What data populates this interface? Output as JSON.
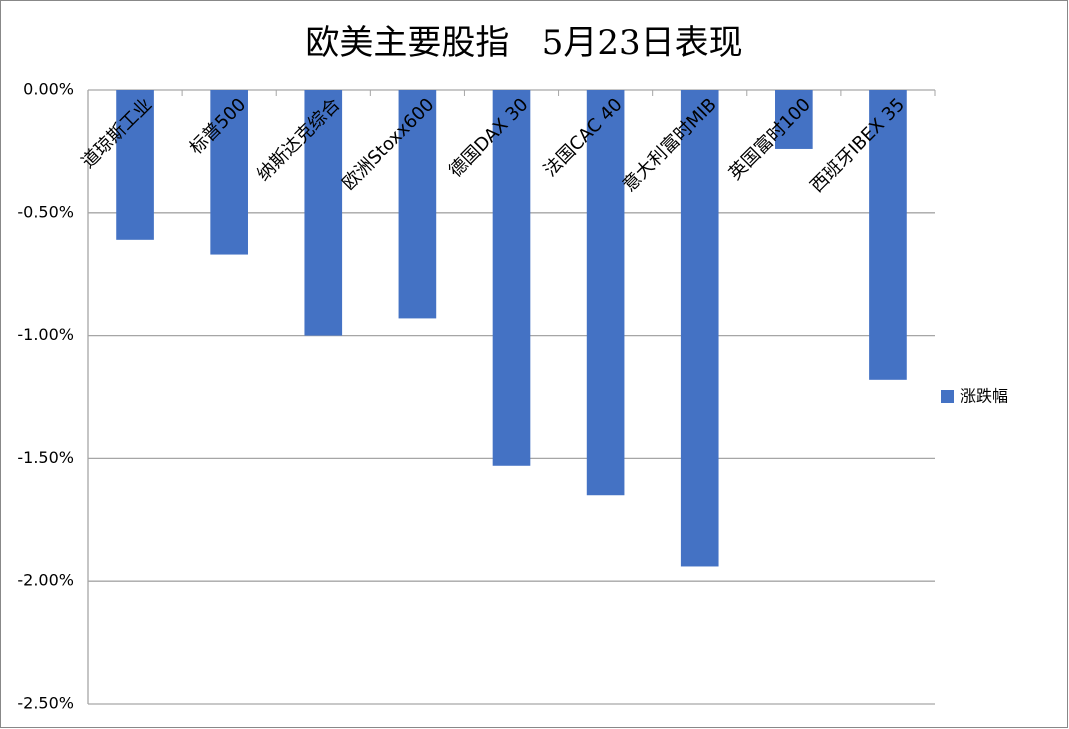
{
  "chart_data": {
    "type": "bar",
    "title": "欧美主要股指   5月23日表现",
    "categories": [
      "道琼斯工业",
      "标普500",
      "纳斯达克综合",
      "欧洲Stoxx600",
      "德国DAX 30",
      "法国CAC 40",
      "意大利富时MIB",
      "英国富时100",
      "西班牙IBEX 35"
    ],
    "series": [
      {
        "name": "涨跌幅",
        "color": "#4472c4",
        "values": [
          -0.61,
          -0.67,
          -1.0,
          -0.93,
          -1.53,
          -1.65,
          -1.94,
          -0.24,
          -1.18
        ]
      }
    ],
    "ylim": [
      -2.5,
      0
    ],
    "yticks": [
      {
        "value": 0,
        "label": "0.00%"
      },
      {
        "value": -0.5,
        "label": "-0.50%"
      },
      {
        "value": -1,
        "label": "-1.00%"
      },
      {
        "value": -1.5,
        "label": "-1.50%"
      },
      {
        "value": -2,
        "label": "-2.00%"
      },
      {
        "value": -2.5,
        "label": "-2.50%"
      }
    ],
    "grid": true,
    "legend": "right"
  }
}
